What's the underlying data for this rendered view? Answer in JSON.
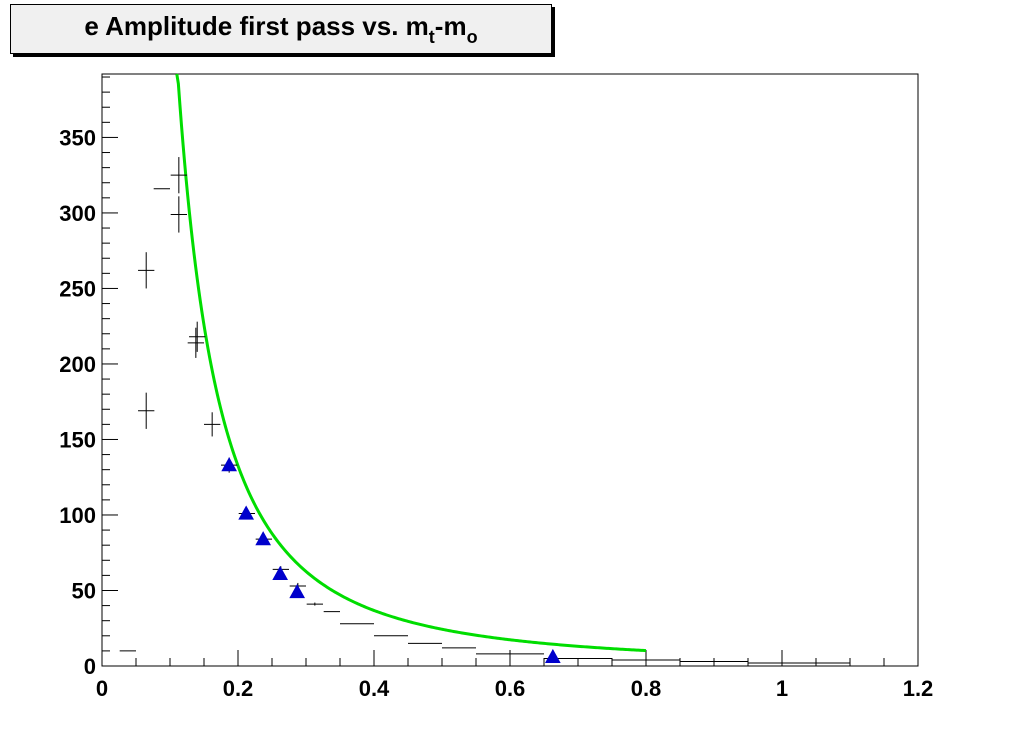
{
  "title": {
    "main": "e Amplitude first pass vs. m",
    "sub1": "t",
    "mid": "-m",
    "sub2": "o"
  },
  "chart_data": {
    "type": "scatter",
    "title": "e Amplitude first pass vs. m_t-m_o",
    "xlabel": "",
    "ylabel": "",
    "xlim": [
      0,
      1.2
    ],
    "ylim": [
      0,
      392
    ],
    "grid": false,
    "x_ticks": [
      "0",
      "0.2",
      "0.4",
      "0.6",
      "0.8",
      "1",
      "1.2"
    ],
    "y_ticks": [
      "0",
      "50",
      "100",
      "150",
      "200",
      "250",
      "300",
      "350"
    ],
    "colors": {
      "fit_line": "#00dd00",
      "triangles": "#0000cc",
      "crosses": "#000000"
    },
    "crosses": [
      {
        "x": 0.038,
        "y": 10,
        "ex": 0.012,
        "ey": 0
      },
      {
        "x": 0.065,
        "y": 169,
        "ex": 0.012,
        "ey": 12
      },
      {
        "x": 0.065,
        "y": 262,
        "ex": 0.012,
        "ey": 12
      },
      {
        "x": 0.088,
        "y": 316,
        "ex": 0.012,
        "ey": 0
      },
      {
        "x": 0.113,
        "y": 299,
        "ex": 0.012,
        "ey": 12
      },
      {
        "x": 0.113,
        "y": 325,
        "ex": 0.012,
        "ey": 12
      },
      {
        "x": 0.138,
        "y": 214,
        "ex": 0.012,
        "ey": 10
      },
      {
        "x": 0.14,
        "y": 218,
        "ex": 0.012,
        "ey": 10
      },
      {
        "x": 0.162,
        "y": 160,
        "ex": 0.012,
        "ey": 8
      },
      {
        "x": 0.187,
        "y": 133,
        "ex": 0.012,
        "ey": 5
      },
      {
        "x": 0.213,
        "y": 101,
        "ex": 0.012,
        "ey": 3
      },
      {
        "x": 0.238,
        "y": 84,
        "ex": 0.012,
        "ey": 3
      },
      {
        "x": 0.263,
        "y": 64,
        "ex": 0.012,
        "ey": 2
      },
      {
        "x": 0.288,
        "y": 53,
        "ex": 0.012,
        "ey": 2
      },
      {
        "x": 0.313,
        "y": 41,
        "ex": 0.012,
        "ey": 1
      },
      {
        "x": 0.338,
        "y": 36,
        "ex": 0.012,
        "ey": 0
      },
      {
        "x": 0.375,
        "y": 28,
        "ex": 0.025,
        "ey": 0
      },
      {
        "x": 0.425,
        "y": 20,
        "ex": 0.025,
        "ey": 0
      },
      {
        "x": 0.475,
        "y": 15,
        "ex": 0.025,
        "ey": 0
      },
      {
        "x": 0.525,
        "y": 12,
        "ex": 0.025,
        "ey": 0
      },
      {
        "x": 0.6,
        "y": 8,
        "ex": 0.05,
        "ey": 0
      },
      {
        "x": 0.7,
        "y": 5,
        "ex": 0.05,
        "ey": 0
      },
      {
        "x": 0.8,
        "y": 4,
        "ex": 0.05,
        "ey": 0
      },
      {
        "x": 0.9,
        "y": 3,
        "ex": 0.05,
        "ey": 0
      },
      {
        "x": 1.0,
        "y": 2,
        "ex": 0.05,
        "ey": 0
      },
      {
        "x": 1.05,
        "y": 2,
        "ex": 0.05,
        "ey": 0
      }
    ],
    "triangles": [
      {
        "x": 0.187,
        "y": 133
      },
      {
        "x": 0.212,
        "y": 101
      },
      {
        "x": 0.237,
        "y": 84
      },
      {
        "x": 0.262,
        "y": 61
      },
      {
        "x": 0.287,
        "y": 49
      },
      {
        "x": 0.663,
        "y": 6
      }
    ],
    "fit": {
      "type": "line",
      "form": "y = a * x^-b",
      "a": 6.75,
      "b": 1.85,
      "x_start": 0.11,
      "x_end": 0.8
    }
  }
}
